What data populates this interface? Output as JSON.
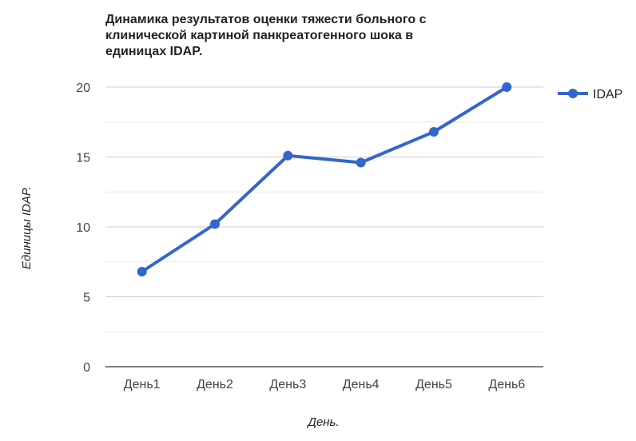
{
  "chart_data": {
    "type": "line",
    "title_lines": [
      "Динамика результатов оценки тяжести больного с",
      "клинической картиной панкреатогенного шока в",
      "единицах IDAP."
    ],
    "xlabel": "День.",
    "ylabel": "Единицы IDAP.",
    "categories": [
      "День1",
      "День2",
      "День3",
      "День4",
      "День5",
      "День6"
    ],
    "series": [
      {
        "name": "IDAP",
        "values": [
          6.8,
          10.2,
          15.1,
          14.6,
          16.8,
          20.0
        ],
        "color": "#3366cc"
      }
    ],
    "ylim": [
      0,
      20
    ],
    "yticks": [
      0,
      5,
      10,
      15,
      20
    ],
    "grid": true,
    "legend_position": "right"
  }
}
